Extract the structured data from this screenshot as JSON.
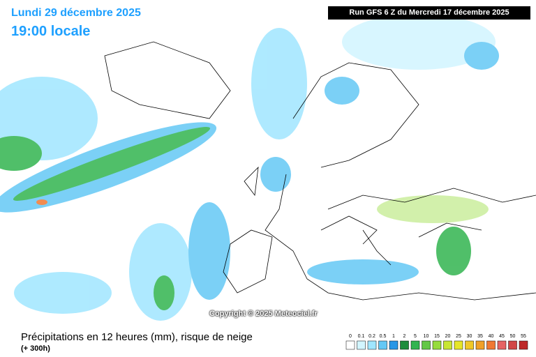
{
  "header": {
    "date": "Lundi 29 décembre 2025",
    "time": "19:00 locale",
    "run": "Run GFS 6 Z du Mercredi 17 décembre 2025"
  },
  "copyright": "Copyright © 2025 Meteociel.fr",
  "footer": {
    "title": "Précipitations en 12 heures (mm), risque de neige",
    "lead": "(+ 300h)"
  },
  "legend": {
    "labels": [
      0,
      0.1,
      0.2,
      0.5,
      1,
      2,
      5,
      10,
      15,
      20,
      25,
      30,
      35,
      40,
      45,
      50,
      55
    ],
    "colors": [
      "#ffffff",
      "#d2f5ff",
      "#a0e6ff",
      "#64c8f5",
      "#2896e6",
      "#1e8c3c",
      "#32b450",
      "#64c846",
      "#96dc3c",
      "#c8e632",
      "#e6e628",
      "#f0c828",
      "#f0a028",
      "#f07832",
      "#e66464",
      "#d24646",
      "#be2828"
    ]
  }
}
